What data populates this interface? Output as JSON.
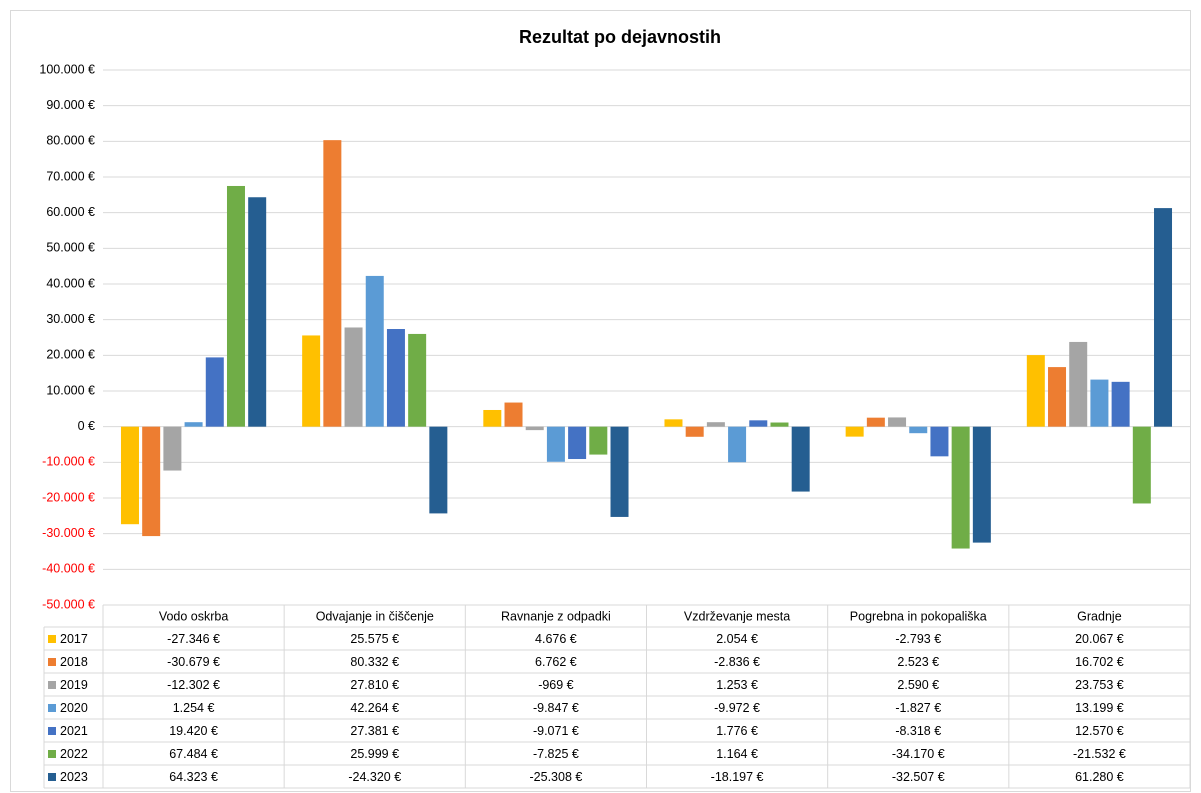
{
  "chart_data": {
    "type": "bar",
    "title": "Rezultat po dejavnostih",
    "categories": [
      "Vodo oskrba",
      "Odvajanje in čiščenje",
      "Ravnanje z odpadki",
      "Vzdrževanje mesta",
      "Pogrebna in pokopališka",
      "Gradnje"
    ],
    "series": [
      {
        "name": "2017",
        "color": "#ffc000",
        "values": [
          -27346,
          25575,
          4676,
          2054,
          -2793,
          20067
        ],
        "value_labels": [
          "-27.346 €",
          "25.575 €",
          "4.676 €",
          "2.054 €",
          "-2.793 €",
          "20.067 €"
        ]
      },
      {
        "name": "2018",
        "color": "#ed7d31",
        "values": [
          -30679,
          80332,
          6762,
          -2836,
          2523,
          16702
        ],
        "value_labels": [
          "-30.679 €",
          "80.332 €",
          "6.762 €",
          "-2.836 €",
          "2.523 €",
          "16.702 €"
        ]
      },
      {
        "name": "2019",
        "color": "#a5a5a5",
        "values": [
          -12302,
          27810,
          -969,
          1253,
          2590,
          23753
        ],
        "value_labels": [
          "-12.302 €",
          "27.810 €",
          "-969 €",
          "1.253 €",
          "2.590 €",
          "23.753 €"
        ]
      },
      {
        "name": "2020",
        "color": "#5b9bd5",
        "values": [
          1254,
          42264,
          -9847,
          -9972,
          -1827,
          13199
        ],
        "value_labels": [
          "1.254 €",
          "42.264 €",
          "-9.847 €",
          "-9.972 €",
          "-1.827 €",
          "13.199 €"
        ]
      },
      {
        "name": "2021",
        "color": "#4472c4",
        "values": [
          19420,
          27381,
          -9071,
          1776,
          -8318,
          12570
        ],
        "value_labels": [
          "19.420 €",
          "27.381 €",
          "-9.071 €",
          "1.776 €",
          "-8.318 €",
          "12.570 €"
        ]
      },
      {
        "name": "2022",
        "color": "#70ad47",
        "values": [
          67484,
          25999,
          -7825,
          1164,
          -34170,
          -21532
        ],
        "value_labels": [
          "67.484 €",
          "25.999 €",
          "-7.825 €",
          "1.164 €",
          "-34.170 €",
          "-21.532 €"
        ]
      },
      {
        "name": "2023",
        "color": "#255e91",
        "values": [
          64323,
          -24320,
          -25308,
          -18197,
          -32507,
          61280
        ],
        "value_labels": [
          "64.323 €",
          "-24.320 €",
          "-25.308 €",
          "-18.197 €",
          "-32.507 €",
          "61.280 €"
        ]
      }
    ],
    "ylim": [
      -50000,
      100000
    ],
    "yticks": [
      {
        "value": -50000,
        "label": "-50.000 €"
      },
      {
        "value": -40000,
        "label": "-40.000 €"
      },
      {
        "value": -30000,
        "label": "-30.000 €"
      },
      {
        "value": -20000,
        "label": "-20.000 €"
      },
      {
        "value": -10000,
        "label": "-10.000 €"
      },
      {
        "value": 0,
        "label": "0 €"
      },
      {
        "value": 10000,
        "label": "10.000 €"
      },
      {
        "value": 20000,
        "label": "20.000 €"
      },
      {
        "value": 30000,
        "label": "30.000 €"
      },
      {
        "value": 40000,
        "label": "40.000 €"
      },
      {
        "value": 50000,
        "label": "50.000 €"
      },
      {
        "value": 60000,
        "label": "60.000 €"
      },
      {
        "value": 70000,
        "label": "70.000 €"
      },
      {
        "value": 80000,
        "label": "80.000 €"
      },
      {
        "value": 90000,
        "label": "90.000 €"
      },
      {
        "value": 100000,
        "label": "100.000 €"
      }
    ],
    "grid": true,
    "negative_tick_color": "#ff0000",
    "data_table": true
  }
}
